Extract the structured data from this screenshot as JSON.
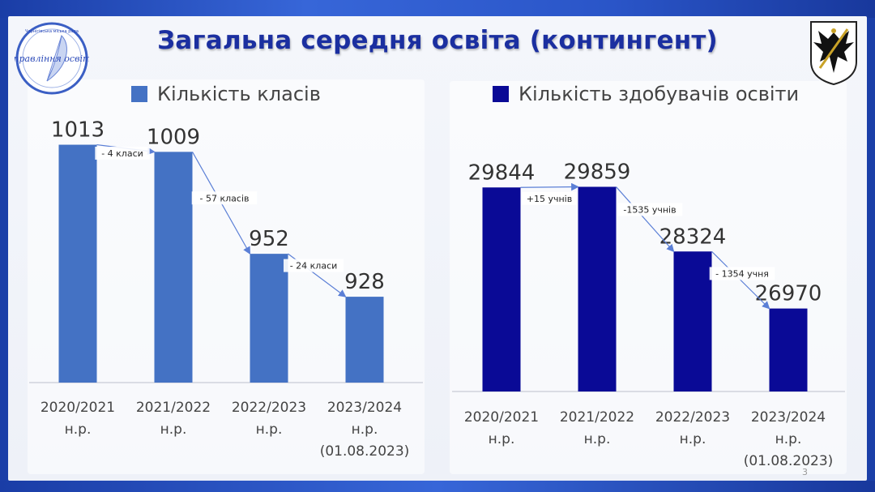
{
  "title": "Загальна середня освіта (контингент)",
  "logo_text": [
    "Чернігівська міська рада",
    "Управління освіти"
  ],
  "page_number": "3",
  "colors": {
    "classes": "#4472c4",
    "students": "#0a0a96",
    "arrow": "#5b7fd6",
    "title": "#1b2fa0"
  },
  "chart_data": [
    {
      "type": "bar",
      "legend": "Кількість класів",
      "categories": [
        [
          "2020/2021",
          "н.р."
        ],
        [
          "2021/2022",
          "н.р."
        ],
        [
          "2022/2023",
          "н.р."
        ],
        [
          "2023/2024",
          "н.р.",
          "(01.08.2023)"
        ]
      ],
      "values": [
        1013,
        1009,
        952,
        928
      ],
      "value_labels": [
        "1013",
        "1009",
        "952",
        "928"
      ],
      "ylim": [
        880,
        1035
      ],
      "annotations": [
        "- 4 класи",
        "- 57 класів",
        "- 24 класи"
      ]
    },
    {
      "type": "bar",
      "legend": "Кількість здобувачів освіти",
      "categories": [
        [
          "2020/2021",
          "н.р."
        ],
        [
          "2021/2022",
          "н.р."
        ],
        [
          "2022/2023",
          "н.р."
        ],
        [
          "2023/2024",
          "н.р.",
          "(01.08.2023)"
        ]
      ],
      "values": [
        29844,
        29859,
        28324,
        26970
      ],
      "value_labels": [
        "29844",
        "29859",
        "28324",
        "26970"
      ],
      "ylim": [
        25000,
        31600
      ],
      "annotations": [
        "+15 учнів",
        "-1535 учнів",
        "- 1354 учня"
      ]
    }
  ]
}
